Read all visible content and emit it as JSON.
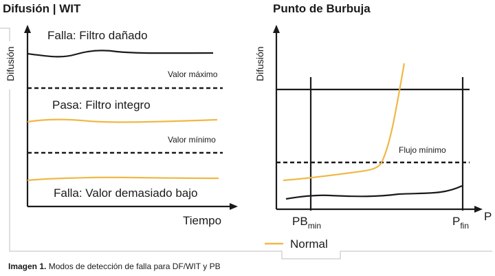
{
  "left_panel": {
    "title": "Difusión | WIT",
    "y_label": "Difusión",
    "x_label": "Tiempo",
    "fail_high": "Falla: Filtro dañado",
    "max_label": "Valor máximo",
    "pass": "Pasa: Filtro integro",
    "min_label": "Valor mínimo",
    "fail_low": "Falla: Valor demasiado bajo"
  },
  "right_panel": {
    "title": "Punto de Burbuja",
    "y_label": "Difusión",
    "flow_label": "Flujo mínimo",
    "pb_main": "PB",
    "pb_sub": "min",
    "pfin_main": "P",
    "pfin_sub": "fin",
    "p_axis": "P"
  },
  "legend": {
    "normal": "Normal"
  },
  "caption": {
    "prefix": "Imagen 1.",
    "text": " Modos de detección de falla para DF/WIT y PB"
  },
  "colors": {
    "normal": "#f0b844",
    "line": "#1a1a1a",
    "frame": "#bdbdbd"
  }
}
